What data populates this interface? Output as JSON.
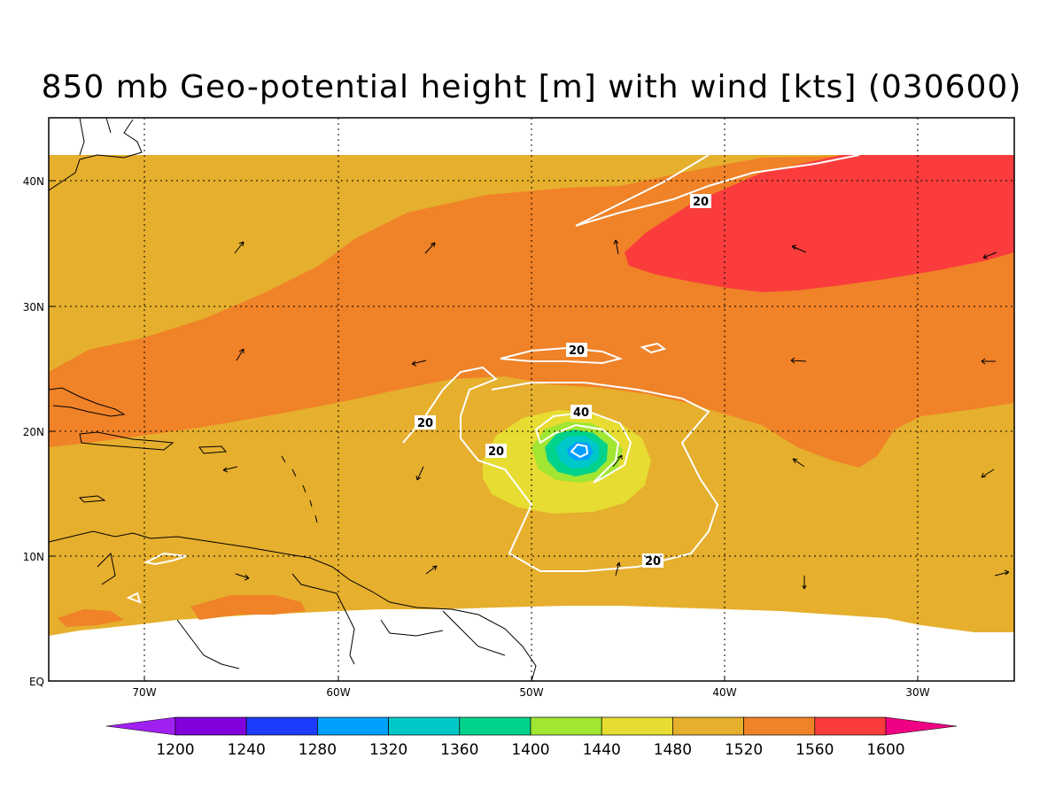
{
  "title": "850 mb Geo-potential height [m] with wind [kts] (030600)",
  "axes": {
    "lat_ticks": [
      "40N",
      "30N",
      "20N",
      "10N",
      "EQ"
    ],
    "lon_ticks": [
      "70W",
      "60W",
      "50W",
      "40W",
      "30W"
    ]
  },
  "colorbar": {
    "labels": [
      "1200",
      "1240",
      "1280",
      "1320",
      "1360",
      "1400",
      "1440",
      "1480",
      "1520",
      "1560",
      "1600"
    ],
    "colors": [
      "#a020f0",
      "#8200dc",
      "#1e3cff",
      "#00a0ff",
      "#00c8c8",
      "#00d28c",
      "#a0e632",
      "#e6dc32",
      "#e6af2d",
      "#f08228",
      "#fa3c3c",
      "#f00082"
    ]
  },
  "contour_labels": {
    "c1": "20",
    "c2": "20",
    "c3": "20",
    "c4": "20",
    "c5": "40",
    "c6": "20"
  }
}
